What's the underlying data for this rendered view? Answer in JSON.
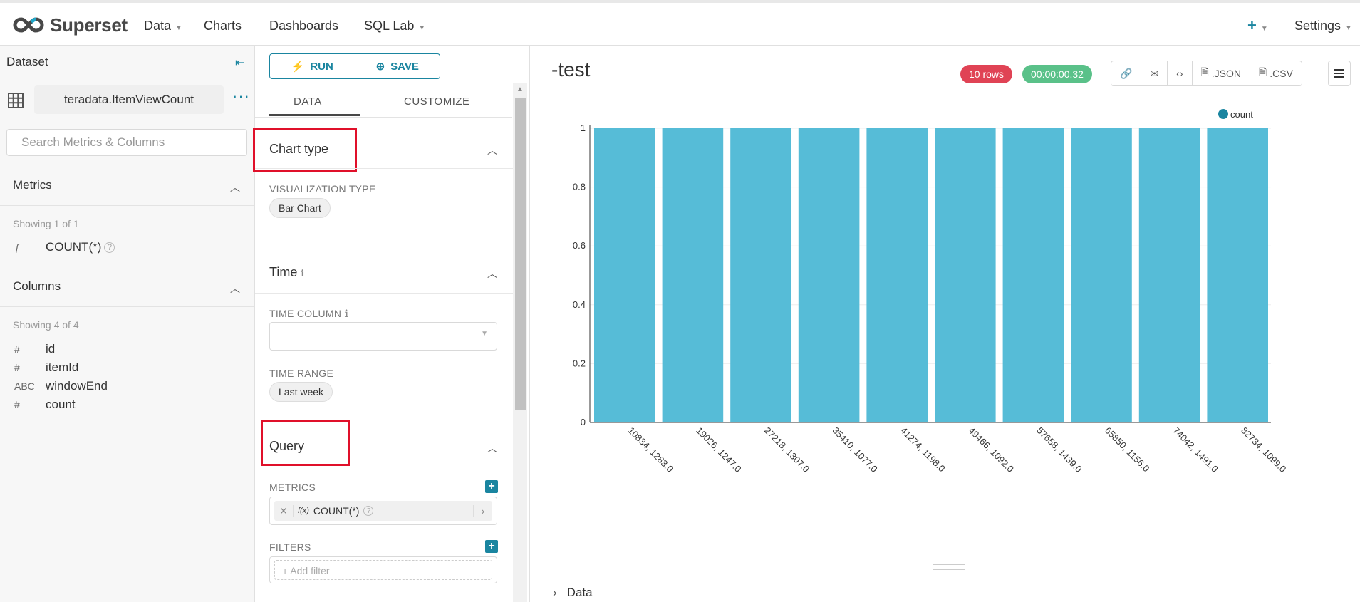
{
  "app": {
    "brand": "Superset"
  },
  "nav": {
    "data": "Data",
    "charts": "Charts",
    "dashboards": "Dashboards",
    "sql_lab": "SQL Lab",
    "settings": "Settings"
  },
  "left": {
    "dataset_label": "Dataset",
    "dataset_name": "teradata.ItemViewCount",
    "search_placeholder": "Search Metrics & Columns",
    "metrics_title": "Metrics",
    "metrics_showing": "Showing 1 of 1",
    "metrics": [
      {
        "type": "ƒ",
        "name": "COUNT(*)"
      }
    ],
    "columns_title": "Columns",
    "columns_showing": "Showing 4 of 4",
    "columns": [
      {
        "type": "#",
        "name": "id"
      },
      {
        "type": "#",
        "name": "itemId"
      },
      {
        "type": "ABC",
        "name": "windowEnd"
      },
      {
        "type": "#",
        "name": "count"
      }
    ]
  },
  "middle": {
    "run": "RUN",
    "save": "SAVE",
    "tab_data": "DATA",
    "tab_customize": "CUSTOMIZE",
    "chart_type_title": "Chart type",
    "viz_type_label": "VISUALIZATION TYPE",
    "viz_type_value": "Bar Chart",
    "time_title": "Time",
    "time_column_label": "TIME COLUMN",
    "time_range_label": "TIME RANGE",
    "time_range_value": "Last week",
    "query_title": "Query",
    "metrics_label": "METRICS",
    "metric_value": "COUNT(*)",
    "metric_fx": "f(x)",
    "filters_label": "FILTERS",
    "add_filter": "Add filter"
  },
  "chart": {
    "title": "-test",
    "rows_badge": "10 rows",
    "time_badge": "00:00:00.32",
    "json": ".JSON",
    "csv": ".CSV",
    "data_section": "Data",
    "accent": "#1a85a0",
    "bar_color": "#56bcd7"
  },
  "chart_data": {
    "type": "bar",
    "categories": [
      "10834, 1283.0",
      "19026, 1247.0",
      "27218, 1307.0",
      "35410, 1077.0",
      "41274, 1198.0",
      "49466, 1092.0",
      "57658, 1439.0",
      "65850, 1156.0",
      "74042, 1491.0",
      "82734, 1099.0"
    ],
    "series": [
      {
        "name": "count",
        "values": [
          1,
          1,
          1,
          1,
          1,
          1,
          1,
          1,
          1,
          1
        ]
      }
    ],
    "ylim": [
      0,
      1
    ],
    "yticks": [
      "0",
      "0.2",
      "0.4",
      "0.6",
      "0.8",
      "1"
    ],
    "legend": "top-right",
    "grid": true
  }
}
